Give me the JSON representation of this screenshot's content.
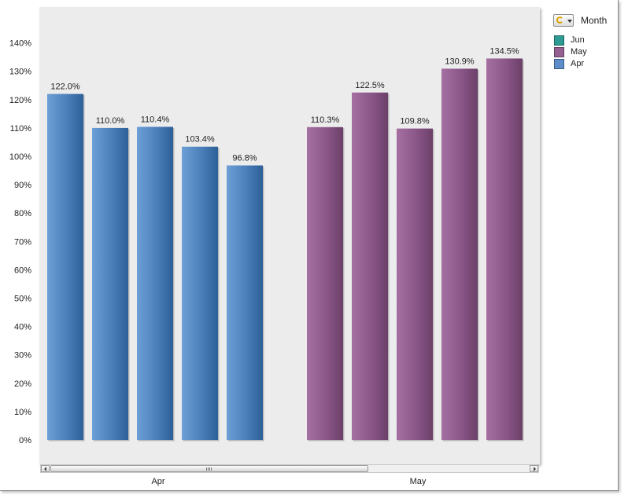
{
  "chart_data": {
    "type": "bar",
    "title": "",
    "xlabel": "",
    "ylabel": "",
    "ylim": [
      0,
      150
    ],
    "y_ticks": [
      0,
      10,
      20,
      30,
      40,
      50,
      60,
      70,
      80,
      90,
      100,
      110,
      120,
      130,
      140
    ],
    "y_tick_labels": [
      "0%",
      "10%",
      "20%",
      "30%",
      "40%",
      "50%",
      "60%",
      "70%",
      "80%",
      "90%",
      "100%",
      "110%",
      "120%",
      "130%",
      "140%"
    ],
    "grid": false,
    "legend_position": "top-right",
    "groups": [
      {
        "label": "Apr",
        "color": "#3f74ad",
        "values": [
          122.0,
          110.0,
          110.4,
          103.4,
          96.8
        ],
        "data_labels": [
          "122.0%",
          "110.0%",
          "110.4%",
          "103.4%",
          "96.8%"
        ]
      },
      {
        "label": "May",
        "color": "#8a5688",
        "values": [
          110.3,
          122.5,
          109.8,
          130.9,
          134.5
        ],
        "data_labels": [
          "110.3%",
          "122.5%",
          "109.8%",
          "130.9%",
          "134.5%"
        ]
      }
    ]
  },
  "legend": {
    "title": "Month",
    "items": [
      {
        "label": "Jun",
        "color": "#2d9a93"
      },
      {
        "label": "May",
        "color": "#955f92"
      },
      {
        "label": "Apr",
        "color": "#5d8ec9"
      }
    ]
  }
}
